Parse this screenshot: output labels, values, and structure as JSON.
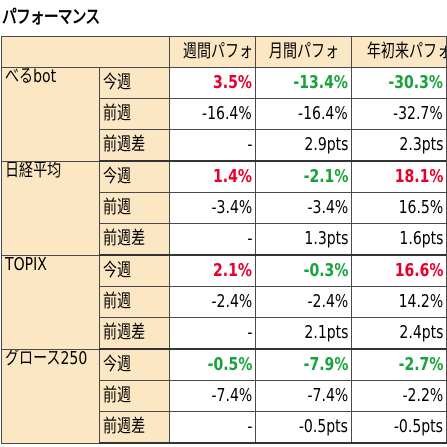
{
  "title": "パフォーマンス",
  "headers": [
    "週間パフォ",
    "月間パフォ",
    "年初来パフォ"
  ],
  "groups": [
    {
      "name": "べるbot",
      "rows": [
        {
          "label": "今週",
          "values": [
            {
              "text": "3.5%",
              "tone": "red"
            },
            {
              "text": "-13.4%",
              "tone": "green"
            },
            {
              "text": "-30.3%",
              "tone": "green"
            }
          ]
        },
        {
          "label": "前週",
          "values": [
            {
              "text": "-16.4%",
              "tone": "black"
            },
            {
              "text": "-16.4%",
              "tone": "black"
            },
            {
              "text": "-32.7%",
              "tone": "black"
            }
          ]
        },
        {
          "label": "前週差",
          "values": [
            {
              "text": "-",
              "tone": "black"
            },
            {
              "text": "2.9pts",
              "tone": "black"
            },
            {
              "text": "2.3pts",
              "tone": "black"
            }
          ]
        }
      ]
    },
    {
      "name": "日経平均",
      "rows": [
        {
          "label": "今週",
          "values": [
            {
              "text": "1.4%",
              "tone": "red"
            },
            {
              "text": "-2.1%",
              "tone": "green"
            },
            {
              "text": "18.1%",
              "tone": "red"
            }
          ]
        },
        {
          "label": "前週",
          "values": [
            {
              "text": "-3.4%",
              "tone": "black"
            },
            {
              "text": "-3.4%",
              "tone": "black"
            },
            {
              "text": "16.5%",
              "tone": "black"
            }
          ]
        },
        {
          "label": "前週差",
          "values": [
            {
              "text": "-",
              "tone": "black"
            },
            {
              "text": "1.3pts",
              "tone": "black"
            },
            {
              "text": "1.6pts",
              "tone": "black"
            }
          ]
        }
      ]
    },
    {
      "name": "TOPIX",
      "rows": [
        {
          "label": "今週",
          "values": [
            {
              "text": "2.1%",
              "tone": "red"
            },
            {
              "text": "-0.3%",
              "tone": "green"
            },
            {
              "text": "16.6%",
              "tone": "red"
            }
          ]
        },
        {
          "label": "前週",
          "values": [
            {
              "text": "-2.4%",
              "tone": "black"
            },
            {
              "text": "-2.4%",
              "tone": "black"
            },
            {
              "text": "14.2%",
              "tone": "black"
            }
          ]
        },
        {
          "label": "前週差",
          "values": [
            {
              "text": "-",
              "tone": "black"
            },
            {
              "text": "2.1pts",
              "tone": "black"
            },
            {
              "text": "2.4pts",
              "tone": "black"
            }
          ]
        }
      ]
    },
    {
      "name": "グロース250",
      "rows": [
        {
          "label": "今週",
          "values": [
            {
              "text": "-0.5%",
              "tone": "green"
            },
            {
              "text": "-7.9%",
              "tone": "green"
            },
            {
              "text": "-2.7%",
              "tone": "green"
            }
          ]
        },
        {
          "label": "前週",
          "values": [
            {
              "text": "-7.4%",
              "tone": "black"
            },
            {
              "text": "-7.4%",
              "tone": "black"
            },
            {
              "text": "-2.2%",
              "tone": "black"
            }
          ]
        },
        {
          "label": "前週差",
          "values": [
            {
              "text": "-",
              "tone": "black"
            },
            {
              "text": "-0.5pts",
              "tone": "black"
            },
            {
              "text": "-0.5pts",
              "tone": "black"
            }
          ]
        }
      ]
    }
  ],
  "colors": {
    "header_fill": "#fbe7c4",
    "positive": "#e8002a",
    "negative": "#17a33c",
    "border": "#4a4a4a"
  }
}
